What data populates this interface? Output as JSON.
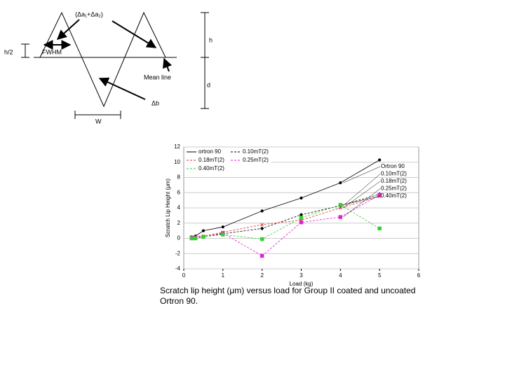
{
  "diagram": {
    "labels": [
      "(Δa₁+Δa₂)",
      "h",
      "h/2",
      "FWHM",
      "Mean line",
      "d",
      "Δb",
      "W"
    ]
  },
  "chart_data": {
    "type": "line",
    "xlabel": "Load (kg)",
    "ylabel": "Scratch Lip Height (μm)",
    "xlim": [
      0,
      6
    ],
    "xticks": [
      0,
      1,
      2,
      3,
      4,
      5,
      6
    ],
    "ylim": [
      -4,
      12
    ],
    "yticks": [
      -4,
      -2,
      0,
      2,
      4,
      6,
      8,
      10,
      12
    ],
    "grid": true,
    "legend": "upper left",
    "series": [
      {
        "name": "ortron 90",
        "color": "#000000",
        "marker": "circle",
        "x": [
          0.2,
          0.3,
          0.5,
          1,
          2,
          3,
          4,
          5
        ],
        "values": [
          0.2,
          0.3,
          1.0,
          1.5,
          3.6,
          5.3,
          7.3,
          10.3
        ]
      },
      {
        "name": "0.10mT(2)",
        "color": "#000000",
        "marker": "diamond",
        "x": [
          0.2,
          0.3,
          0.5,
          1,
          2,
          3,
          4,
          5
        ],
        "values": [
          0.1,
          0.2,
          0.2,
          0.6,
          1.3,
          3.1,
          4.3,
          5.8
        ]
      },
      {
        "name": "0.18mT(2)",
        "color": "#e03030",
        "marker": "cross",
        "x": [
          0.2,
          0.3,
          0.5,
          1,
          2,
          3,
          4,
          5
        ],
        "values": [
          0.1,
          0.2,
          0.3,
          0.8,
          1.8,
          2.4,
          4.0,
          5.5
        ]
      },
      {
        "name": "0.25mT(2)",
        "color": "#e020d0",
        "marker": "square",
        "x": [
          0.2,
          0.3,
          0.5,
          1,
          2,
          3,
          4,
          5
        ],
        "values": [
          0.1,
          0.1,
          0.2,
          0.7,
          -2.3,
          2.1,
          2.8,
          5.7
        ]
      },
      {
        "name": "0.40mT(2)",
        "color": "#30d030",
        "marker": "square",
        "x": [
          0.2,
          0.3,
          0.5,
          1,
          2,
          3,
          4,
          5
        ],
        "values": [
          0,
          0,
          0.2,
          0.5,
          -0.1,
          2.7,
          4.4,
          1.3
        ]
      }
    ],
    "annotations": [
      "Ortron 90",
      "0.10mT(2)",
      "0.18mT(2)",
      "0.25mT(2)",
      "0.40mT(2)"
    ],
    "caption": "Scratch lip height (μm) versus load for Group II  coated  and uncoated Ortron 90."
  }
}
